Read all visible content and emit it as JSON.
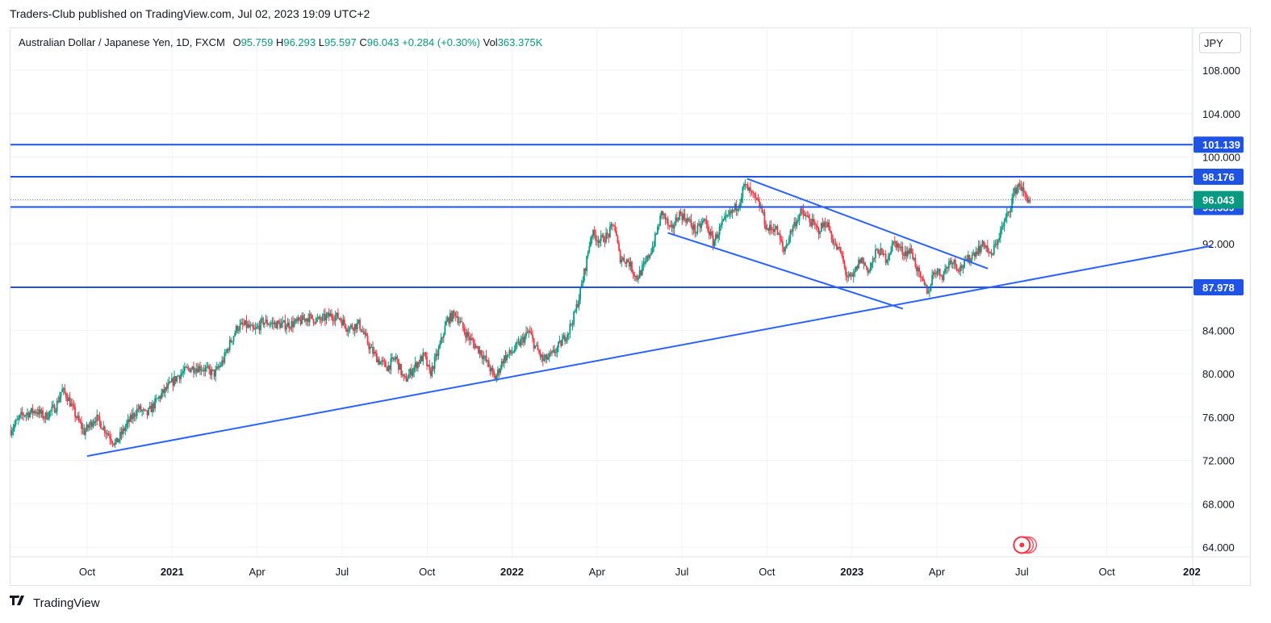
{
  "publisher": "Traders-Club published on TradingView.com, Jul 02, 2023 19:09 UTC+2",
  "legend": {
    "symbol": "Australian Dollar / Japanese Yen, 1D, FXCM",
    "o_label": "O",
    "o_value": "95.759",
    "h_label": "H",
    "h_value": "96.293",
    "l_label": "L",
    "l_value": "95.597",
    "c_label": "C",
    "c_value": "96.043",
    "change": "+0.284 (+0.30%)",
    "vol_label": "Vol",
    "vol_value": "363.375K"
  },
  "currency_button": "JPY",
  "footer_brand": "TradingView",
  "footer_icon": "tradingview-logo-icon",
  "colors": {
    "up": "#089981",
    "down": "#f23645",
    "line": "#2962ff",
    "level_line": "#1e53e5",
    "price_badge": "#089981",
    "level_badge": "#1e53e5"
  },
  "chart_data": {
    "type": "candlestick",
    "symbol": "AUDJPY",
    "timeframe": "1D",
    "ylim": [
      63.2,
      111.0
    ],
    "y_ticks": [
      108,
      104,
      100,
      96,
      92,
      88,
      84,
      80,
      76,
      72,
      68,
      64
    ],
    "y_tick_labels": [
      "108.000",
      "104.000",
      "100.000",
      "96.000",
      "92.000",
      "88.000",
      "84.000",
      "80.000",
      "76.000",
      "72.000",
      "68.000",
      "64.000"
    ],
    "x_ticks": [
      {
        "label": "Oct",
        "t": 0,
        "bold": false
      },
      {
        "label": "2021",
        "t": 3,
        "bold": true
      },
      {
        "label": "Apr",
        "t": 6,
        "bold": false
      },
      {
        "label": "Jul",
        "t": 9,
        "bold": false
      },
      {
        "label": "Oct",
        "t": 12,
        "bold": false
      },
      {
        "label": "2022",
        "t": 15,
        "bold": true
      },
      {
        "label": "Apr",
        "t": 18,
        "bold": false
      },
      {
        "label": "Jul",
        "t": 21,
        "bold": false
      },
      {
        "label": "Oct",
        "t": 24,
        "bold": false
      },
      {
        "label": "2023",
        "t": 27,
        "bold": true
      },
      {
        "label": "Apr",
        "t": 30,
        "bold": false
      },
      {
        "label": "Jul",
        "t": 33,
        "bold": false
      },
      {
        "label": "Oct",
        "t": 36,
        "bold": false
      },
      {
        "label": "202",
        "t": 39,
        "bold": true
      }
    ],
    "x_unit": "months since Oct 2020",
    "price_path": [
      [
        -2.7,
        74.8
      ],
      [
        -2.3,
        76.2
      ],
      [
        -1.8,
        76.6
      ],
      [
        -1.5,
        76.0
      ],
      [
        -1.1,
        77.0
      ],
      [
        -0.9,
        78.5
      ],
      [
        -0.7,
        77.9
      ],
      [
        -0.4,
        76.1
      ],
      [
        -0.1,
        74.6
      ],
      [
        0.3,
        76.0
      ],
      [
        0.7,
        74.6
      ],
      [
        1.0,
        73.5
      ],
      [
        1.4,
        75.3
      ],
      [
        1.8,
        76.8
      ],
      [
        2.1,
        76.2
      ],
      [
        2.5,
        77.7
      ],
      [
        2.9,
        78.9
      ],
      [
        3.2,
        79.8
      ],
      [
        3.6,
        80.5
      ],
      [
        4.0,
        80.6
      ],
      [
        4.5,
        80.0
      ],
      [
        4.8,
        81.2
      ],
      [
        5.0,
        82.6
      ],
      [
        5.3,
        84.3
      ],
      [
        5.6,
        84.5
      ],
      [
        5.9,
        83.9
      ],
      [
        6.2,
        84.8
      ],
      [
        6.6,
        84.6
      ],
      [
        7.0,
        84.5
      ],
      [
        7.4,
        84.7
      ],
      [
        7.8,
        85.2
      ],
      [
        8.2,
        84.9
      ],
      [
        8.6,
        85.4
      ],
      [
        8.9,
        85.2
      ],
      [
        9.2,
        84.2
      ],
      [
        9.6,
        84.6
      ],
      [
        10.0,
        82.3
      ],
      [
        10.3,
        81.2
      ],
      [
        10.6,
        80.6
      ],
      [
        10.9,
        81.5
      ],
      [
        11.2,
        79.3
      ],
      [
        11.6,
        80.8
      ],
      [
        11.9,
        81.7
      ],
      [
        12.1,
        79.9
      ],
      [
        12.4,
        82.1
      ],
      [
        12.7,
        84.9
      ],
      [
        13.0,
        85.6
      ],
      [
        13.3,
        84.0
      ],
      [
        13.6,
        82.9
      ],
      [
        13.9,
        82.0
      ],
      [
        14.2,
        80.6
      ],
      [
        14.4,
        79.5
      ],
      [
        14.7,
        81.4
      ],
      [
        15.0,
        82.0
      ],
      [
        15.3,
        82.9
      ],
      [
        15.6,
        83.9
      ],
      [
        15.8,
        82.6
      ],
      [
        16.1,
        81.2
      ],
      [
        16.4,
        81.7
      ],
      [
        16.7,
        82.7
      ],
      [
        17.0,
        84.0
      ],
      [
        17.2,
        85.4
      ],
      [
        17.4,
        87.4
      ],
      [
        17.6,
        90.0
      ],
      [
        17.8,
        93.0
      ],
      [
        18.1,
        92.3
      ],
      [
        18.4,
        92.8
      ],
      [
        18.6,
        93.9
      ],
      [
        18.8,
        90.7
      ],
      [
        19.1,
        90.4
      ],
      [
        19.4,
        88.8
      ],
      [
        19.7,
        90.1
      ],
      [
        20.0,
        92.0
      ],
      [
        20.3,
        95.0
      ],
      [
        20.6,
        93.1
      ],
      [
        20.9,
        94.8
      ],
      [
        21.2,
        94.2
      ],
      [
        21.5,
        93.1
      ],
      [
        21.8,
        94.2
      ],
      [
        22.1,
        92.1
      ],
      [
        22.4,
        93.7
      ],
      [
        22.7,
        94.7
      ],
      [
        23.0,
        95.7
      ],
      [
        23.2,
        97.4
      ],
      [
        23.5,
        96.4
      ],
      [
        23.8,
        95.2
      ],
      [
        24.0,
        93.3
      ],
      [
        24.3,
        93.5
      ],
      [
        24.6,
        91.3
      ],
      [
        24.9,
        93.5
      ],
      [
        25.2,
        94.9
      ],
      [
        25.5,
        94.2
      ],
      [
        25.8,
        93.2
      ],
      [
        26.1,
        94.0
      ],
      [
        26.4,
        91.8
      ],
      [
        26.6,
        91.2
      ],
      [
        26.8,
        89.1
      ],
      [
        27.0,
        88.7
      ],
      [
        27.3,
        90.6
      ],
      [
        27.6,
        89.5
      ],
      [
        27.9,
        91.5
      ],
      [
        28.2,
        90.6
      ],
      [
        28.5,
        92.2
      ],
      [
        28.8,
        91.2
      ],
      [
        29.1,
        91.3
      ],
      [
        29.4,
        88.8
      ],
      [
        29.7,
        87.5
      ],
      [
        29.9,
        89.6
      ],
      [
        30.2,
        89.1
      ],
      [
        30.5,
        90.6
      ],
      [
        30.8,
        89.7
      ],
      [
        31.1,
        90.5
      ],
      [
        31.4,
        91.4
      ],
      [
        31.7,
        92.0
      ],
      [
        31.9,
        90.7
      ],
      [
        32.2,
        92.8
      ],
      [
        32.5,
        94.7
      ],
      [
        32.7,
        96.5
      ],
      [
        32.9,
        97.6
      ],
      [
        33.1,
        96.4
      ],
      [
        33.3,
        96.0
      ]
    ],
    "last_close": 96.043,
    "horizontal_levels": [
      {
        "price": 101.139,
        "label": "101.139"
      },
      {
        "price": 98.176,
        "label": "98.176"
      },
      {
        "price": 95.389,
        "label": "95.389"
      },
      {
        "price": 87.978,
        "label": "87.978"
      }
    ],
    "current_price_label": "96.043",
    "trendlines": [
      {
        "name": "long-term-support",
        "p1": [
          0.0,
          72.4
        ],
        "p2": [
          39.7,
          91.8
        ]
      },
      {
        "name": "channel-upper",
        "p1": [
          23.3,
          98.0
        ],
        "p2": [
          31.8,
          89.7
        ]
      },
      {
        "name": "channel-lower",
        "p1": [
          20.5,
          93.0
        ],
        "p2": [
          28.8,
          86.0
        ]
      }
    ],
    "event_marker": {
      "t": 33.0,
      "price": 64.2
    }
  }
}
